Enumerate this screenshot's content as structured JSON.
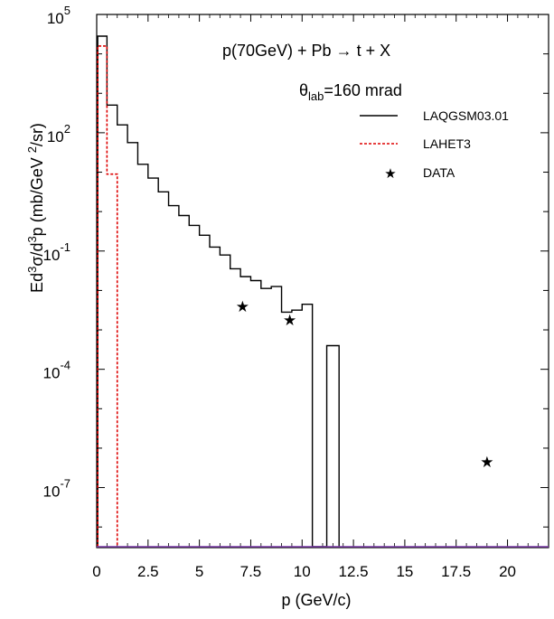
{
  "chart_data": {
    "type": "line",
    "annotations": {
      "reaction": "p(70GeV) + Pb → t + X",
      "angle_symbol": "θ",
      "angle_subscript": "lab",
      "angle_value": "=160 mrad"
    },
    "xlabel": "p (GeV/c)",
    "ylabel_parts": [
      "Ed",
      "3",
      "σ/d",
      "3",
      "p  (mb/GeV ",
      "2",
      "/sr)"
    ],
    "x_ticks": [
      "0",
      "2.5",
      "5",
      "7.5",
      "10",
      "12.5",
      "15",
      "17.5",
      "20"
    ],
    "x_tick_values": [
      0,
      2.5,
      5,
      7.5,
      10,
      12.5,
      15,
      17.5,
      20
    ],
    "y_ticks": [
      {
        "base": "10",
        "exp": "5",
        "value": 5
      },
      {
        "base": "10",
        "exp": "2",
        "value": 2
      },
      {
        "base": "10",
        "exp": "-1",
        "value": -1
      },
      {
        "base": "10",
        "exp": "-4",
        "value": -4
      },
      {
        "base": "10",
        "exp": "-7",
        "value": -7
      }
    ],
    "xlim": [
      0,
      22
    ],
    "ylim_log10": [
      -8.5,
      5
    ],
    "log_y": true,
    "legend_position": "top-right",
    "series": [
      {
        "name": "LAQGSM03.01",
        "style": "solid",
        "color": "#000000",
        "type": "histogram",
        "bins": [
          {
            "x0": 0.05,
            "x1": 0.5,
            "log10y": 4.45
          },
          {
            "x0": 0.5,
            "x1": 1.0,
            "log10y": 2.7
          },
          {
            "x0": 1.0,
            "x1": 1.5,
            "log10y": 2.2
          },
          {
            "x0": 1.5,
            "x1": 2.0,
            "log10y": 1.75
          },
          {
            "x0": 2.0,
            "x1": 2.5,
            "log10y": 1.2
          },
          {
            "x0": 2.5,
            "x1": 3.0,
            "log10y": 0.85
          },
          {
            "x0": 3.0,
            "x1": 3.5,
            "log10y": 0.5
          },
          {
            "x0": 3.5,
            "x1": 4.0,
            "log10y": 0.15
          },
          {
            "x0": 4.0,
            "x1": 4.5,
            "log10y": -0.1
          },
          {
            "x0": 4.5,
            "x1": 5.0,
            "log10y": -0.35
          },
          {
            "x0": 5.0,
            "x1": 5.5,
            "log10y": -0.6
          },
          {
            "x0": 5.5,
            "x1": 6.0,
            "log10y": -0.9
          },
          {
            "x0": 6.0,
            "x1": 6.5,
            "log10y": -1.1
          },
          {
            "x0": 6.5,
            "x1": 7.0,
            "log10y": -1.45
          },
          {
            "x0": 7.0,
            "x1": 7.5,
            "log10y": -1.65
          },
          {
            "x0": 7.5,
            "x1": 8.0,
            "log10y": -1.75
          },
          {
            "x0": 8.0,
            "x1": 8.5,
            "log10y": -1.95
          },
          {
            "x0": 8.5,
            "x1": 9.0,
            "log10y": -1.9
          },
          {
            "x0": 9.0,
            "x1": 9.5,
            "log10y": -2.55
          },
          {
            "x0": 9.5,
            "x1": 10.0,
            "log10y": -2.5
          },
          {
            "x0": 10.0,
            "x1": 10.5,
            "log10y": -2.35
          },
          {
            "x0": 10.5,
            "x1": 11.2,
            "log10y": null
          },
          {
            "x0": 11.2,
            "x1": 11.8,
            "log10y": -3.4
          }
        ]
      },
      {
        "name": "LAHET3",
        "style": "dashed",
        "color": "#dd0000",
        "type": "histogram",
        "bins": [
          {
            "x0": 0.05,
            "x1": 0.5,
            "log10y": 4.2
          },
          {
            "x0": 0.5,
            "x1": 1.0,
            "log10y": 0.95
          }
        ]
      },
      {
        "name": "DATA",
        "style": "marker-star",
        "color": "#000000",
        "type": "scatter",
        "points": [
          {
            "x": 7.1,
            "log10y": -2.4
          },
          {
            "x": 9.4,
            "log10y": -2.75
          },
          {
            "x": 19.0,
            "log10y": -6.35
          }
        ]
      }
    ]
  }
}
